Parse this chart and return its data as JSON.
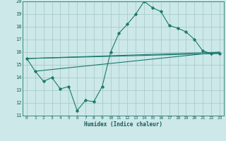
{
  "xlabel": "Humidex (Indice chaleur)",
  "bg_color": "#cce8e8",
  "grid_color": "#aacccc",
  "line_color": "#1a7a6e",
  "xlim": [
    -0.5,
    23.5
  ],
  "ylim": [
    11,
    20
  ],
  "xticks": [
    0,
    1,
    2,
    3,
    4,
    5,
    6,
    7,
    8,
    9,
    10,
    11,
    12,
    13,
    14,
    15,
    16,
    17,
    18,
    19,
    20,
    21,
    22,
    23
  ],
  "yticks": [
    11,
    12,
    13,
    14,
    15,
    16,
    17,
    18,
    19,
    20
  ],
  "line1_x": [
    0,
    1,
    2,
    3,
    4,
    5,
    6,
    7,
    8,
    9,
    10,
    11,
    12,
    13,
    14,
    15,
    16,
    17,
    18,
    19,
    20,
    21,
    22,
    23
  ],
  "line1_y": [
    15.5,
    14.5,
    13.7,
    14.0,
    13.1,
    13.3,
    11.4,
    12.2,
    12.1,
    13.3,
    16.0,
    17.5,
    18.2,
    19.0,
    20.0,
    19.5,
    19.2,
    18.1,
    17.9,
    17.6,
    17.0,
    16.1,
    15.9,
    15.9
  ],
  "line2_x": [
    0,
    23
  ],
  "line2_y": [
    15.5,
    16.0
  ],
  "line3_x": [
    1,
    23
  ],
  "line3_y": [
    14.5,
    16.0
  ],
  "line4_x": [
    0,
    23
  ],
  "line4_y": [
    15.5,
    15.9
  ]
}
